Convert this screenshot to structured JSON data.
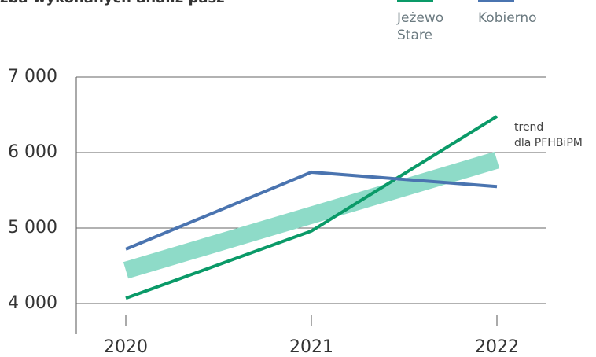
{
  "chart_data": {
    "type": "line",
    "title": "zba wykonanych analiz pasz",
    "categories": [
      "2020",
      "2021",
      "2022"
    ],
    "series": [
      {
        "name": "Jeżewo Stare",
        "color": "#0a9a68",
        "values": [
          4070,
          4960,
          6480
        ]
      },
      {
        "name": "Kobierno",
        "color": "#4a74b0",
        "values": [
          4720,
          5740,
          5550
        ]
      }
    ],
    "trend": {
      "label": [
        "trend",
        "dla PFHBiPM"
      ],
      "color": "#8edbc8",
      "values": [
        4440,
        5170,
        5900
      ]
    },
    "ylim": [
      4000,
      7000
    ],
    "yticks": [
      {
        "value": 4000,
        "label": "4 000"
      },
      {
        "value": 5000,
        "label": "5 000"
      },
      {
        "value": 6000,
        "label": "6 000"
      },
      {
        "value": 7000,
        "label": "7 000"
      }
    ],
    "grid": true
  }
}
